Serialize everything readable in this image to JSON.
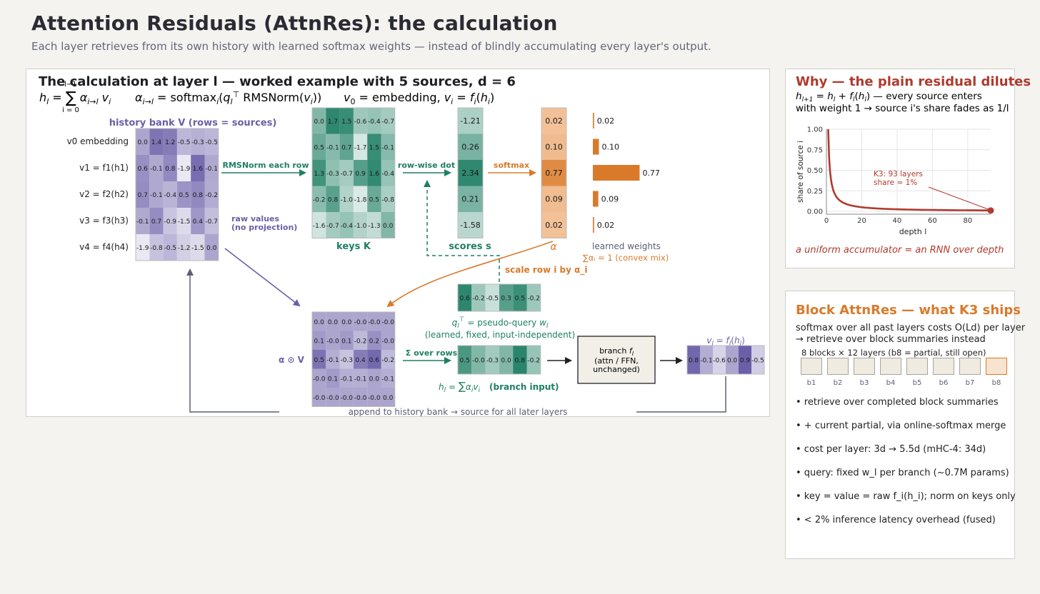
{
  "header": {
    "title": "Attention Residuals (AttnRes): the calculation",
    "subtitle": "Each layer retrieves from its own history with learned softmax weights — instead of blindly accumulating every layer's output."
  },
  "main": {
    "title": "The calculation at layer  l  — worked example with 5 sources, d = 6",
    "formula_h": "h_l = Σ α_{i→l} v_i",
    "formula_h_sum_top": "l−1",
    "formula_h_sum_bottom": "i = 0",
    "formula_alpha": "α_{i→l} = softmax_i(q_l^⊤ RMSNorm(v_i))",
    "formula_v": "v_0 = embedding,  v_i = f_i(h_i)",
    "history_bank_label": "history bank  V  (rows = sources)",
    "row_labels": [
      "v0  embedding",
      "v1 = f1(h1)",
      "v2 = f2(h2)",
      "v3 = f3(h3)",
      "v4 = f4(h4)"
    ],
    "raw_values_label": [
      "raw values",
      "(no projection)"
    ],
    "rmsnorm_label": "RMSNorm each row",
    "keys_label": "keys  K",
    "rowwise_label": "row-wise dot",
    "scores_label": "scores s",
    "softmax_label": "softmax",
    "alpha_label": "α",
    "learned_weights_label": "learned weights",
    "convex_label": "∑αᵢ = 1  (convex mix)",
    "scale_label": "scale row  i  by  α_i",
    "query_label": "q_l^⊤ = pseudo-query w_l",
    "query_sub": "(learned, fixed, input-independent)",
    "weighted_label": "α ⊙ V",
    "sum_rows_label": "Σ over rows",
    "branch_input_formula": "h_l = Σ αᵢvᵢ",
    "branch_input_label": "(branch input)",
    "branch_box": [
      "branch fₗ",
      "(attn / FFN,",
      "unchanged)"
    ],
    "output_label": "v_l = f_l(h_l)",
    "append_label": "append to history bank  →  source for all later layers",
    "V": [
      [
        0.0,
        1.4,
        1.2,
        -0.5,
        -0.3,
        -0.5
      ],
      [
        0.6,
        -0.1,
        0.8,
        -1.9,
        1.6,
        -0.1
      ],
      [
        0.7,
        -0.1,
        -0.4,
        0.5,
        0.8,
        -0.2
      ],
      [
        -0.1,
        0.7,
        -0.9,
        -1.5,
        0.4,
        -0.7
      ],
      [
        -1.9,
        -0.8,
        -0.5,
        -1.2,
        -1.5,
        0.0
      ]
    ],
    "K": [
      [
        0.0,
        1.7,
        1.5,
        -0.6,
        -0.4,
        -0.7
      ],
      [
        0.5,
        -0.1,
        0.7,
        -1.7,
        1.5,
        -0.1
      ],
      [
        1.3,
        -0.3,
        -0.7,
        0.9,
        1.6,
        -0.4
      ],
      [
        -0.2,
        0.8,
        -1.0,
        -1.8,
        0.5,
        -0.8
      ],
      [
        -1.6,
        -0.7,
        -0.4,
        -1.0,
        -1.3,
        0.0
      ]
    ],
    "scores": [
      -1.21,
      0.26,
      2.34,
      0.21,
      -1.58
    ],
    "scores_text": [
      "-1.21",
      "0.26",
      "2.34",
      "0.21",
      "-1.58"
    ],
    "alpha": [
      0.02,
      0.1,
      0.77,
      0.09,
      0.02
    ],
    "alpha_text": [
      "0.02",
      "0.10",
      "0.77",
      "0.09",
      "0.02"
    ],
    "query": [
      0.6,
      -0.2,
      -0.5,
      0.3,
      0.5,
      -0.2
    ],
    "AV": [
      [
        0.0,
        0.0,
        0.0,
        -0.0,
        -0.0,
        -0.0
      ],
      [
        0.1,
        -0.0,
        0.1,
        -0.2,
        0.2,
        -0.0
      ],
      [
        0.5,
        -0.1,
        -0.3,
        0.4,
        0.6,
        -0.2
      ],
      [
        -0.0,
        0.1,
        -0.1,
        -0.1,
        0.0,
        -0.1
      ],
      [
        -0.0,
        -0.0,
        -0.0,
        -0.0,
        -0.0,
        0.0
      ]
    ],
    "AV_text": [
      [
        "0.0",
        "0.0",
        "0.0",
        "-0.0",
        "-0.0",
        "-0.0"
      ],
      [
        "0.1",
        "-0.0",
        "0.1",
        "-0.2",
        "0.2",
        "-0.0"
      ],
      [
        "0.5",
        "-0.1",
        "-0.3",
        "0.4",
        "0.6",
        "-0.2"
      ],
      [
        "-0.0",
        "0.1",
        "-0.1",
        "-0.1",
        "0.0",
        "-0.1"
      ],
      [
        "-0.0",
        "-0.0",
        "-0.0",
        "-0.0",
        "-0.0",
        "0.0"
      ]
    ],
    "h": [
      0.5,
      -0.0,
      -0.3,
      0.0,
      0.8,
      -0.2
    ],
    "h_text": [
      "0.5",
      "-0.0",
      "-0.3",
      "0.0",
      "0.8",
      "-0.2"
    ],
    "v_out": [
      0.8,
      -0.1,
      -0.6,
      0.0,
      0.9,
      -0.5
    ],
    "v_out_text": [
      "0.8",
      "-0.1",
      "-0.6",
      "0.0",
      "0.9",
      "-0.5"
    ]
  },
  "why": {
    "title": "Why — the plain residual dilutes",
    "line1": "h_{l+1} = h_l + f_l(h_l) — every source enters",
    "line2": "with weight 1  →  source i's share fades as 1/l",
    "footer": "a uniform accumulator = an RNN over depth"
  },
  "chart_data": {
    "type": "line",
    "xlabel": "depth  l",
    "ylabel": "share of source i",
    "xlim": [
      0,
      93
    ],
    "ylim": [
      0,
      1.0
    ],
    "xticks": [
      0,
      20,
      40,
      60,
      80
    ],
    "yticks": [
      "0.00",
      "0.25",
      "0.50",
      "0.75",
      "1.00"
    ],
    "grid": true,
    "series": [
      {
        "function": "1/l",
        "x_start": 1,
        "x_end": 93
      }
    ],
    "annotation": {
      "text": [
        "K3: 93 layers",
        "share ≈ 1%"
      ],
      "x": 93,
      "y": 0.01
    }
  },
  "block": {
    "title": "Block AttnRes — what K3 ships",
    "line1": "softmax over all past layers costs O(Ld) per layer",
    "line2": "→ retrieve over block summaries instead",
    "blocks_caption": "8 blocks × 12 layers (b8 = partial, still open)",
    "blocks": [
      "b1",
      "b2",
      "b3",
      "b4",
      "b5",
      "b6",
      "b7",
      "b8"
    ],
    "bullets": [
      "•  retrieve over completed block summaries",
      "•  + current partial, via online-softmax merge",
      "•  cost per layer:  3d → 5.5d   (mHC-4: 34d)",
      "•  query: fixed w_l per branch (~0.7M params)",
      "•  key = value = raw f_i(h_i); norm on keys only",
      "•  < 2% inference latency overhead (fused)"
    ]
  },
  "colors": {
    "purple": "#6a5fa8",
    "teal": "#1f7f64",
    "orange": "#d97a2b",
    "red": "#b03a2e",
    "gray": "#5c6075"
  }
}
